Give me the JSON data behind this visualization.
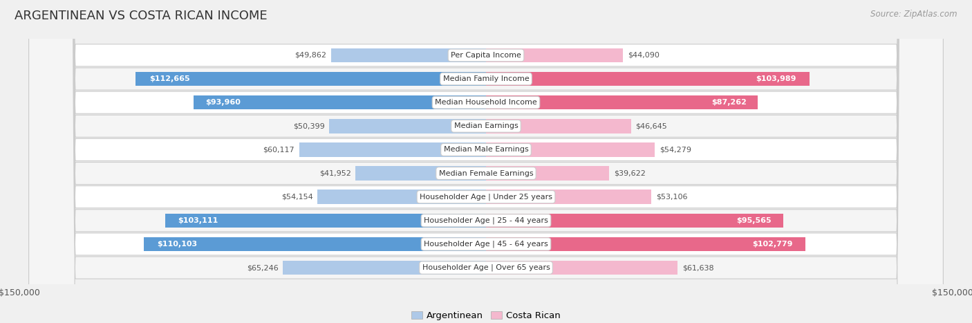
{
  "title": "ARGENTINEAN VS COSTA RICAN INCOME",
  "source": "Source: ZipAtlas.com",
  "categories": [
    "Per Capita Income",
    "Median Family Income",
    "Median Household Income",
    "Median Earnings",
    "Median Male Earnings",
    "Median Female Earnings",
    "Householder Age | Under 25 years",
    "Householder Age | 25 - 44 years",
    "Householder Age | 45 - 64 years",
    "Householder Age | Over 65 years"
  ],
  "argentinean": [
    49862,
    112665,
    93960,
    50399,
    60117,
    41952,
    54154,
    103111,
    110103,
    65246
  ],
  "costa_rican": [
    44090,
    103989,
    87262,
    46645,
    54279,
    39622,
    53106,
    95565,
    102779,
    61638
  ],
  "max_val": 150000,
  "arg_color_light": "#aec9e8",
  "arg_color_dark": "#5b9bd5",
  "cr_color_light": "#f4b8ce",
  "cr_color_dark": "#e8688a",
  "bg_color": "#f0f0f0",
  "row_color_even": "#ffffff",
  "row_color_odd": "#f5f5f5",
  "threshold": 75000,
  "text_inside_color": "#ffffff",
  "text_outside_color": "#555555",
  "label_box_color": "#ffffff",
  "label_box_edge": "#cccccc",
  "title_color": "#333333",
  "source_color": "#999999",
  "tick_color": "#555555"
}
